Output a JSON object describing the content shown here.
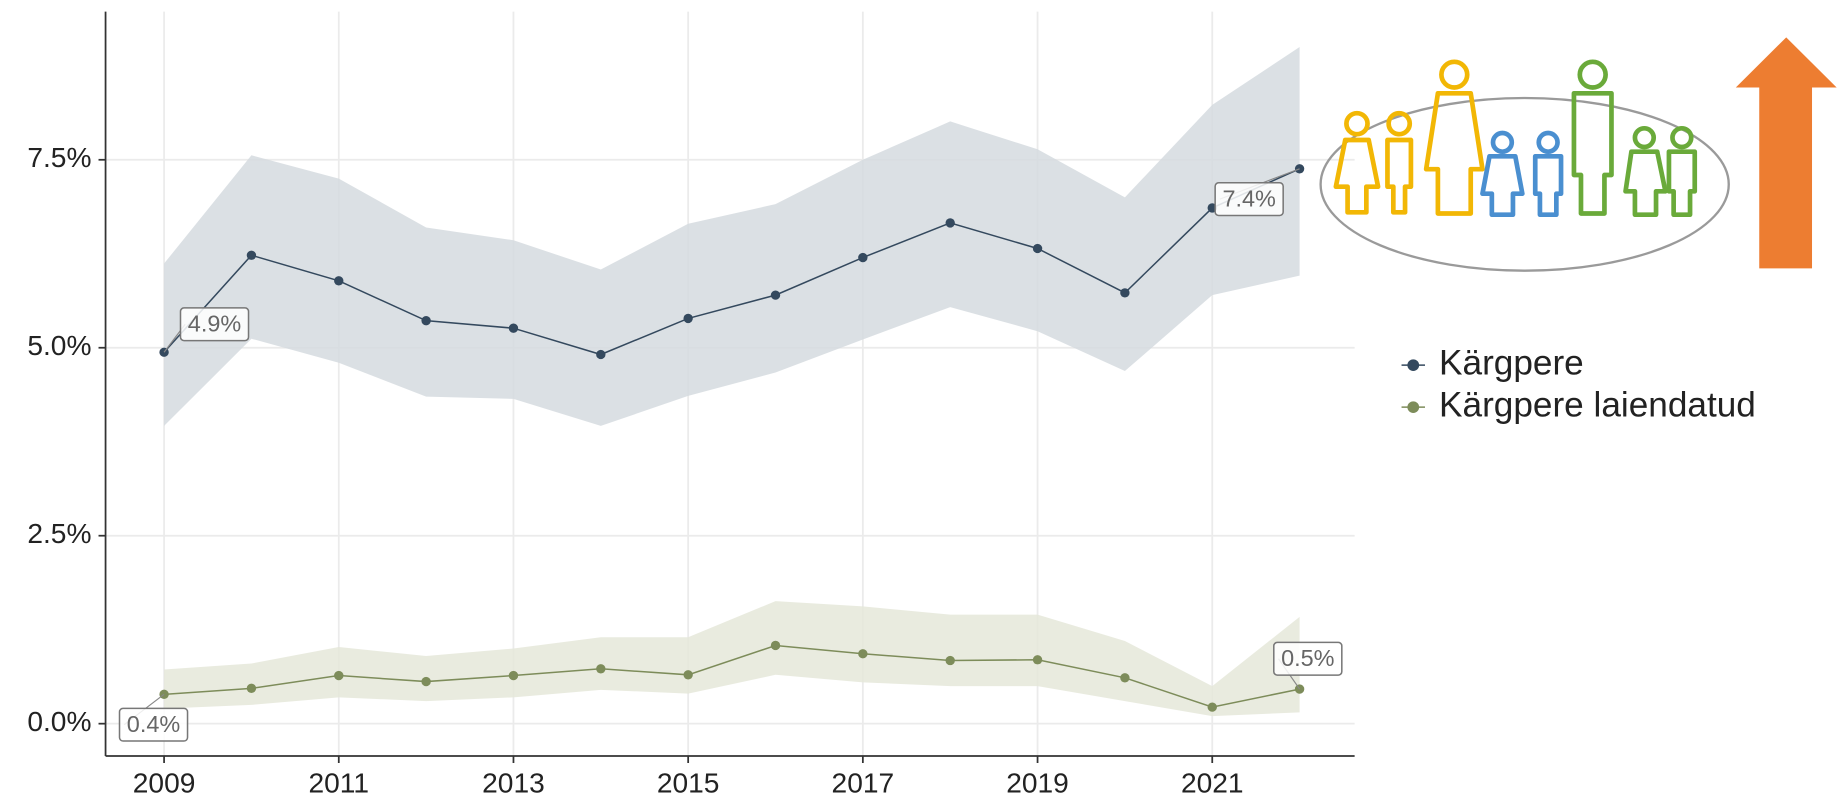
{
  "chart_data": {
    "type": "line",
    "x": [
      2009,
      2010,
      2011,
      2012,
      2013,
      2014,
      2015,
      2016,
      2017,
      2018,
      2019,
      2020,
      2021,
      2022
    ],
    "xlim": [
      2008.33,
      2022.63
    ],
    "xticks": [
      2009,
      2011,
      2013,
      2015,
      2017,
      2019,
      2021
    ],
    "ylim": [
      -0.43,
      9.47
    ],
    "yticks": [
      {
        "value": 0,
        "label": "0.0%"
      },
      {
        "value": 2.5,
        "label": "2.5%"
      },
      {
        "value": 5,
        "label": "5.0%"
      },
      {
        "value": 7.5,
        "label": "7.5%"
      }
    ],
    "grid": true,
    "legend": "right",
    "series": [
      {
        "name": "Kärgpere",
        "color": "#34495e",
        "band_color": "#d5dbdf",
        "values": [
          4.94,
          6.23,
          5.89,
          5.36,
          5.26,
          4.91,
          5.39,
          5.7,
          6.2,
          6.66,
          6.32,
          5.73,
          6.86,
          7.38
        ],
        "upper": [
          6.12,
          7.56,
          7.25,
          6.6,
          6.43,
          6.04,
          6.65,
          6.91,
          7.5,
          8.01,
          7.64,
          7.0,
          8.23,
          9.0
        ],
        "lower": [
          3.96,
          5.12,
          4.8,
          4.35,
          4.32,
          3.96,
          4.36,
          4.67,
          5.11,
          5.54,
          5.22,
          4.69,
          5.7,
          5.96
        ],
        "value_labels": [
          "4.9%",
          null,
          null,
          null,
          null,
          null,
          null,
          null,
          null,
          null,
          null,
          null,
          null,
          "7.4%"
        ]
      },
      {
        "name": "Kärgpere laiendatud",
        "color": "#7d8c5a",
        "band_color": "#e5e7d9",
        "values": [
          0.39,
          0.47,
          0.64,
          0.56,
          0.64,
          0.73,
          0.65,
          1.04,
          0.93,
          0.84,
          0.85,
          0.61,
          0.22,
          0.46
        ],
        "upper": [
          0.72,
          0.8,
          1.02,
          0.9,
          1.0,
          1.15,
          1.15,
          1.63,
          1.56,
          1.45,
          1.45,
          1.1,
          0.5,
          1.42
        ],
        "lower": [
          0.2,
          0.25,
          0.35,
          0.3,
          0.35,
          0.45,
          0.4,
          0.65,
          0.55,
          0.5,
          0.5,
          0.3,
          0.1,
          0.15
        ],
        "value_labels": [
          "0.4%",
          null,
          null,
          null,
          null,
          null,
          null,
          null,
          null,
          null,
          null,
          null,
          null,
          "0.5%"
        ]
      }
    ]
  }
}
